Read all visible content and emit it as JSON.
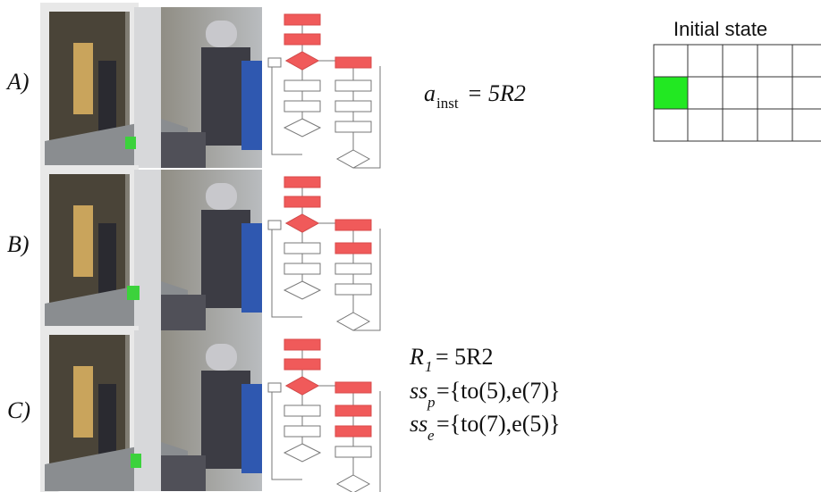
{
  "rows": [
    {
      "label": "A)"
    },
    {
      "label": "B)"
    },
    {
      "label": "C)"
    }
  ],
  "instruction": {
    "base": "a",
    "sub": "inst",
    "rhs": "= 5R2"
  },
  "state": {
    "title": "Initial state"
  },
  "result": {
    "rule": {
      "base": "R",
      "sub": "1",
      "rhs": "= 5R2"
    },
    "ss_p": {
      "base": "ss",
      "sub": "p",
      "rhs": "={to(5),e(7)}"
    },
    "ss_e": {
      "base": "ss",
      "sub": "e",
      "rhs": "={to(7),e(5)}"
    }
  }
}
